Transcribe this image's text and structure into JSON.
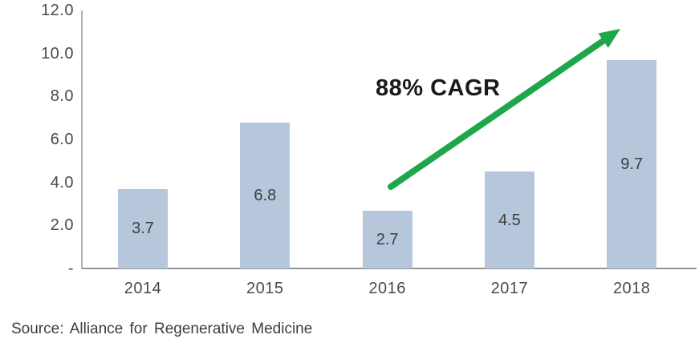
{
  "chart_data": {
    "type": "bar",
    "title": "",
    "categories": [
      "2014",
      "2015",
      "2016",
      "2017",
      "2018"
    ],
    "values": [
      3.7,
      6.8,
      2.7,
      4.5,
      9.7
    ],
    "bar_labels": [
      "3.7",
      "6.8",
      "2.7",
      "4.5",
      "9.7"
    ],
    "bar_label_position": "inside-center",
    "ylim": [
      0,
      12
    ],
    "yticks": {
      "labels": [
        "12.0",
        "10.0",
        "8.0",
        "6.0",
        "4.0",
        "2.0",
        "-"
      ],
      "values": [
        12,
        10,
        8,
        6,
        4,
        2,
        0
      ]
    },
    "xlabel": "",
    "ylabel": "",
    "grid": false,
    "legend": "none",
    "annotation": "88% CAGR",
    "source": "Source: Alliance for Regenerative Medicine",
    "colors": {
      "bar": "#b6c6db",
      "arrow": "#1ea64b",
      "y_axis_line": "#b3b3b3",
      "x_axis_line": "#8f949a",
      "tick_text": "#4a4a4a",
      "bar_label_text": "#3f3f3f",
      "annotation_text": "#1a1a1a",
      "source_text": "#3d3d3d"
    }
  }
}
